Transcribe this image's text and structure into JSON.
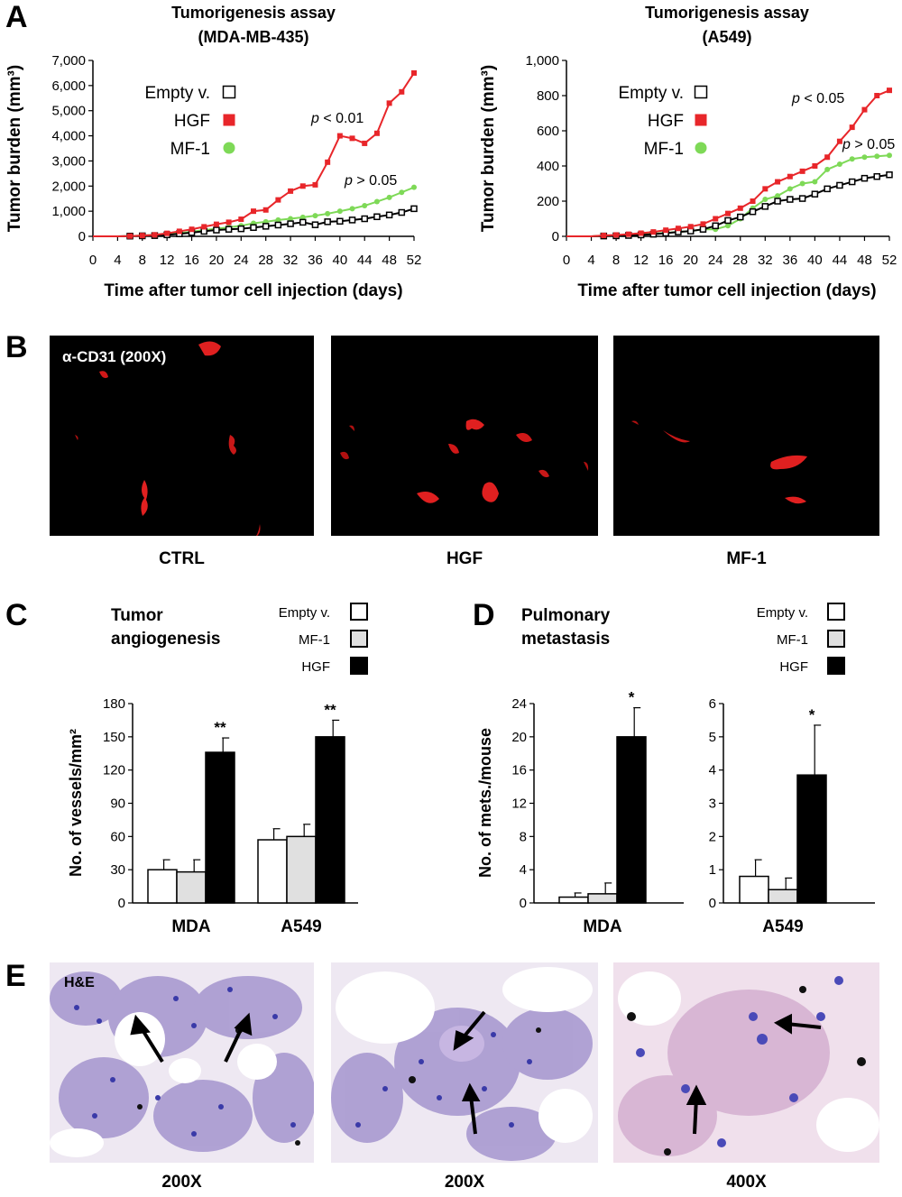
{
  "panels": {
    "a": "A",
    "b": "B",
    "c": "C",
    "d": "D",
    "e": "E"
  },
  "chart_data": [
    {
      "id": "A-left",
      "type": "line",
      "title": [
        "Tumorigenesis assay",
        "(MDA-MB-435)"
      ],
      "xlabel": "Time after tumor cell injection (days)",
      "ylabel": "Tumor burden (mm³)",
      "xlim": [
        0,
        52
      ],
      "ylim": [
        0,
        7000
      ],
      "xticks": [
        "0",
        "4",
        "8",
        "12",
        "16",
        "20",
        "24",
        "28",
        "32",
        "36",
        "40",
        "44",
        "48",
        "52"
      ],
      "yticks": [
        "0",
        "1,000",
        "2,000",
        "3,000",
        "4,000",
        "5,000",
        "6,000",
        "7,000"
      ],
      "legend": [
        "Empty v.",
        "HGF",
        "MF-1"
      ],
      "annotations": [
        "p < 0.01",
        "p > 0.05"
      ],
      "colors": {
        "empty": "#000000",
        "hgf": "#e8262a",
        "mf1": "#7ed957"
      },
      "x": [
        0,
        2,
        4,
        6,
        8,
        10,
        12,
        14,
        16,
        18,
        20,
        22,
        24,
        26,
        28,
        30,
        32,
        34,
        36,
        38,
        40,
        42,
        44,
        46,
        48,
        50,
        52
      ],
      "series": [
        {
          "name": "Empty v.",
          "marker": "open-square",
          "values": [
            0,
            0,
            0,
            10,
            20,
            30,
            60,
            100,
            150,
            200,
            250,
            280,
            300,
            350,
            400,
            450,
            500,
            560,
            460,
            580,
            600,
            650,
            700,
            780,
            850,
            950,
            1100
          ]
        },
        {
          "name": "HGF",
          "marker": "filled-square",
          "values": [
            0,
            0,
            0,
            10,
            30,
            60,
            120,
            200,
            280,
            380,
            480,
            560,
            680,
            1000,
            1050,
            1450,
            1800,
            2000,
            2050,
            2950,
            4000,
            3900,
            3700,
            4100,
            5300,
            5750,
            6500
          ]
        },
        {
          "name": "MF-1",
          "marker": "filled-circle",
          "values": [
            0,
            0,
            0,
            10,
            30,
            60,
            100,
            130,
            180,
            250,
            300,
            360,
            420,
            520,
            580,
            650,
            700,
            760,
            820,
            900,
            1000,
            1100,
            1220,
            1380,
            1550,
            1750,
            1950
          ]
        }
      ]
    },
    {
      "id": "A-right",
      "type": "line",
      "title": [
        "Tumorigenesis assay",
        "(A549)"
      ],
      "xlabel": "Time after tumor cell injection (days)",
      "ylabel": "Tumor burden (mm³)",
      "xlim": [
        0,
        52
      ],
      "ylim": [
        0,
        1000
      ],
      "xticks": [
        "0",
        "4",
        "8",
        "12",
        "16",
        "20",
        "24",
        "28",
        "32",
        "36",
        "40",
        "44",
        "48",
        "52"
      ],
      "yticks": [
        "0",
        "200",
        "400",
        "600",
        "800",
        "1,000"
      ],
      "legend": [
        "Empty v.",
        "HGF",
        "MF-1"
      ],
      "annotations": [
        "p < 0.05",
        "p > 0.05"
      ],
      "colors": {
        "empty": "#000000",
        "hgf": "#e8262a",
        "mf1": "#7ed957"
      },
      "x": [
        0,
        2,
        4,
        6,
        8,
        10,
        12,
        14,
        16,
        18,
        20,
        22,
        24,
        26,
        28,
        30,
        32,
        34,
        36,
        38,
        40,
        42,
        44,
        46,
        48,
        50,
        52
      ],
      "series": [
        {
          "name": "Empty v.",
          "marker": "open-square",
          "values": [
            0,
            0,
            0,
            2,
            3,
            5,
            8,
            12,
            18,
            25,
            30,
            40,
            60,
            90,
            110,
            140,
            170,
            200,
            210,
            215,
            240,
            270,
            290,
            310,
            330,
            340,
            350
          ]
        },
        {
          "name": "HGF",
          "marker": "filled-square",
          "values": [
            0,
            0,
            0,
            5,
            8,
            12,
            18,
            25,
            35,
            45,
            55,
            70,
            100,
            130,
            160,
            200,
            270,
            310,
            340,
            370,
            400,
            450,
            540,
            620,
            720,
            800,
            830
          ]
        },
        {
          "name": "MF-1",
          "marker": "filled-circle",
          "values": [
            0,
            0,
            0,
            3,
            5,
            8,
            12,
            15,
            20,
            25,
            30,
            40,
            40,
            60,
            100,
            160,
            210,
            230,
            270,
            300,
            310,
            380,
            410,
            440,
            450,
            455,
            460
          ]
        }
      ]
    },
    {
      "id": "C",
      "type": "bar",
      "title": [
        "Tumor",
        "angiogenesis"
      ],
      "ylabel": "No. of vessels/mm²",
      "ylim": [
        0,
        180
      ],
      "yticks": [
        "0",
        "30",
        "60",
        "90",
        "120",
        "150",
        "180"
      ],
      "categories": [
        "MDA",
        "A549"
      ],
      "legend": [
        "Empty v.",
        "MF-1",
        "HGF"
      ],
      "colors": {
        "empty": "#ffffff",
        "mf1": "#e0e0e0",
        "hgf": "#000000"
      },
      "series": [
        {
          "name": "Empty v.",
          "values": [
            30,
            57
          ],
          "errors": [
            9,
            10
          ]
        },
        {
          "name": "MF-1",
          "values": [
            28,
            60
          ],
          "errors": [
            11,
            11
          ]
        },
        {
          "name": "HGF",
          "values": [
            136,
            150
          ],
          "errors": [
            13,
            15
          ]
        }
      ],
      "annotations": [
        "**",
        "**"
      ]
    },
    {
      "id": "D-left",
      "type": "bar",
      "title": [
        "Pulmonary",
        "metastasis"
      ],
      "ylabel": "No. of mets./mouse",
      "ylim": [
        0,
        24
      ],
      "yticks": [
        "0",
        "4",
        "8",
        "12",
        "16",
        "20",
        "24"
      ],
      "categories": [
        "MDA"
      ],
      "legend": [
        "Empty v.",
        "MF-1",
        "HGF"
      ],
      "colors": {
        "empty": "#ffffff",
        "mf1": "#e0e0e0",
        "hgf": "#000000"
      },
      "series": [
        {
          "name": "Empty v.",
          "values": [
            0.7
          ],
          "errors": [
            0.5
          ]
        },
        {
          "name": "MF-1",
          "values": [
            1.1
          ],
          "errors": [
            1.3
          ]
        },
        {
          "name": "HGF",
          "values": [
            20
          ],
          "errors": [
            3.5
          ]
        }
      ],
      "annotations": [
        "*"
      ]
    },
    {
      "id": "D-right",
      "type": "bar",
      "ylim": [
        0,
        6
      ],
      "yticks": [
        "0",
        "1",
        "2",
        "3",
        "4",
        "5",
        "6"
      ],
      "categories": [
        "A549"
      ],
      "colors": {
        "empty": "#ffffff",
        "mf1": "#e0e0e0",
        "hgf": "#000000"
      },
      "series": [
        {
          "name": "Empty v.",
          "values": [
            0.8
          ],
          "errors": [
            0.5
          ]
        },
        {
          "name": "MF-1",
          "values": [
            0.4
          ],
          "errors": [
            0.35
          ]
        },
        {
          "name": "HGF",
          "values": [
            3.85
          ],
          "errors": [
            1.5
          ]
        }
      ],
      "annotations": [
        "*"
      ]
    }
  ],
  "panel_b": {
    "overlay": "α-CD31 (200X)",
    "labels": [
      "CTRL",
      "HGF",
      "MF-1"
    ]
  },
  "panel_e": {
    "overlay": "H&E",
    "labels": [
      "200X",
      "200X",
      "400X"
    ]
  }
}
